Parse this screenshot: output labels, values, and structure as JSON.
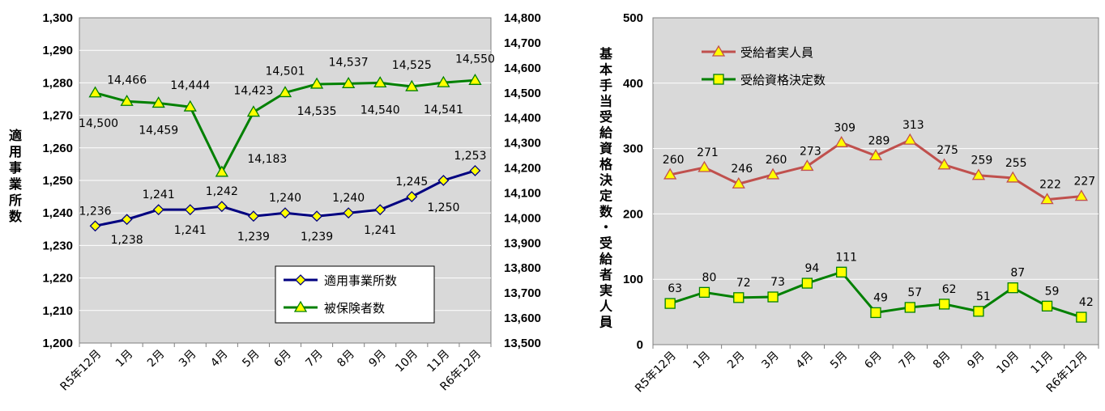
{
  "chart_data": [
    {
      "type": "line",
      "categories": [
        "R5年12月",
        "1月",
        "2月",
        "3月",
        "4月",
        "5月",
        "6月",
        "7月",
        "8月",
        "9月",
        "10月",
        "11月",
        "R6年12月"
      ],
      "ylabel": "適用事業所数",
      "ylim": [
        1200,
        1300
      ],
      "y_ticks": [
        "1,200",
        "1,210",
        "1,220",
        "1,230",
        "1,240",
        "1,250",
        "1,260",
        "1,270",
        "1,280",
        "1,290",
        "1,300"
      ],
      "y2lim": [
        13500,
        14800
      ],
      "y2_ticks": [
        "13,500",
        "13,600",
        "13,700",
        "13,800",
        "13,900",
        "14,000",
        "14,100",
        "14,200",
        "14,300",
        "14,400",
        "14,500",
        "14,600",
        "14,700",
        "14,800"
      ],
      "grid": true,
      "legend_position": "bottom-right",
      "series": [
        {
          "name": "適用事業所数",
          "axis": "left",
          "color": "#000080",
          "marker": "diamond",
          "values": [
            1236,
            1238,
            1241,
            1241,
            1242,
            1239,
            1240,
            1239,
            1240,
            1241,
            1245,
            1250,
            1253
          ],
          "labels": [
            "1,236",
            "1,238",
            "1,241",
            "1,241",
            "1,242",
            "1,239",
            "1,240",
            "1,239",
            "1,240",
            "1,241",
            "1,245",
            "1,250",
            "1,253"
          ]
        },
        {
          "name": "被保険者数",
          "axis": "right",
          "color": "#008000",
          "marker": "triangle",
          "values": [
            14500,
            14466,
            14459,
            14444,
            14183,
            14423,
            14501,
            14535,
            14537,
            14540,
            14525,
            14541,
            14550
          ],
          "labels": [
            "14,500",
            "14,466",
            "14,459",
            "14,444",
            "14,183",
            "14,423",
            "14,501",
            "14,535",
            "14,537",
            "14,540",
            "14,525",
            "14,541",
            "14,550"
          ]
        }
      ]
    },
    {
      "type": "line",
      "categories": [
        "R5年12月",
        "1月",
        "2月",
        "3月",
        "4月",
        "5月",
        "6月",
        "7月",
        "8月",
        "9月",
        "10月",
        "11月",
        "R6年12月"
      ],
      "ylabel": "基本手当受給資格決定数・受給者実人員",
      "ylim": [
        0,
        500
      ],
      "y_ticks": [
        "0",
        "100",
        "200",
        "300",
        "400",
        "500"
      ],
      "grid": true,
      "legend_position": "top-left",
      "series": [
        {
          "name": "受給者実人員",
          "color": "#c0504d",
          "marker": "triangle",
          "values": [
            260,
            271,
            246,
            260,
            273,
            309,
            289,
            313,
            275,
            259,
            255,
            222,
            227
          ],
          "labels": [
            "260",
            "271",
            "246",
            "260",
            "273",
            "309",
            "289",
            "313",
            "275",
            "259",
            "255",
            "222",
            "227"
          ]
        },
        {
          "name": "受給資格決定数",
          "color": "#008000",
          "marker": "square",
          "values": [
            63,
            80,
            72,
            73,
            94,
            111,
            49,
            57,
            62,
            51,
            87,
            59,
            42
          ],
          "labels": [
            "63",
            "80",
            "72",
            "73",
            "94",
            "111",
            "49",
            "57",
            "62",
            "51",
            "87",
            "59",
            "42"
          ]
        }
      ]
    }
  ]
}
